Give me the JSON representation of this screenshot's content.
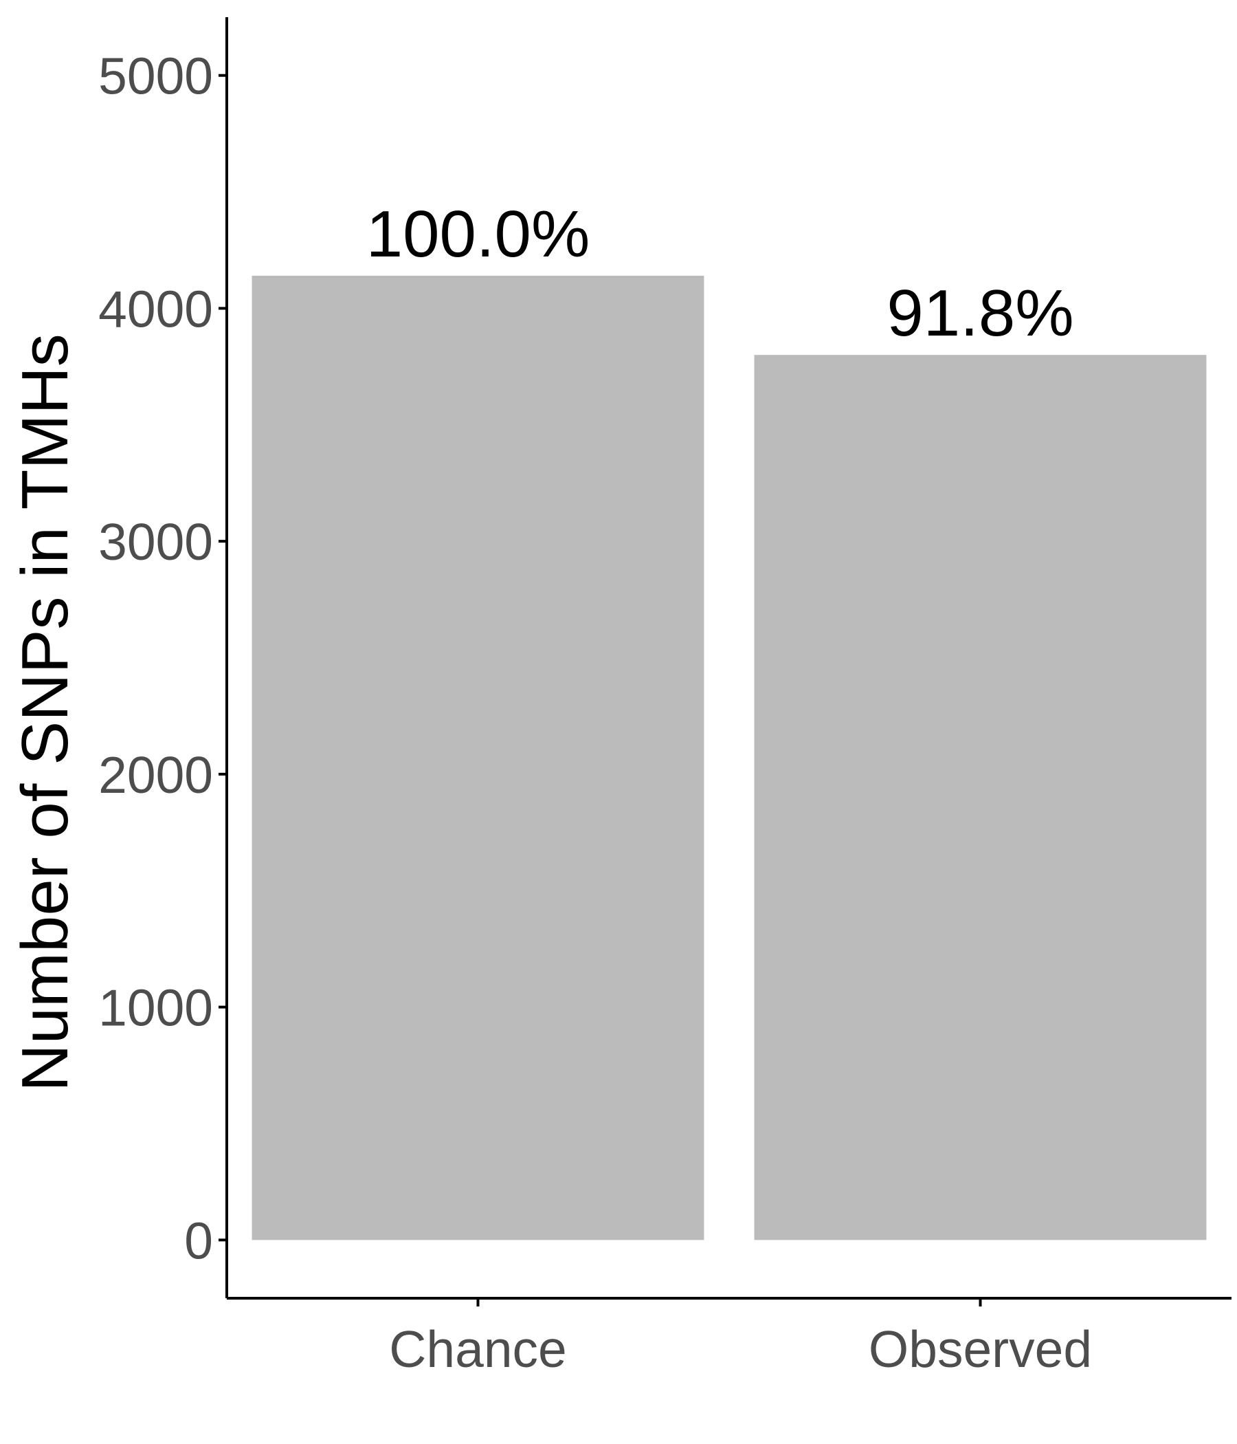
{
  "chart_data": {
    "type": "bar",
    "categories": [
      "Chance",
      "Observed"
    ],
    "values": [
      4140,
      3800
    ],
    "data_labels": [
      "100.0%",
      "91.8%"
    ],
    "ylabel": "Number of SNPs in TMHs",
    "xlabel": "",
    "ylim": [
      -250,
      5250
    ],
    "yticks": [
      0,
      1000,
      2000,
      3000,
      4000,
      5000
    ],
    "grid": false,
    "legend": "none",
    "bar_color": "#bbbbbb"
  }
}
